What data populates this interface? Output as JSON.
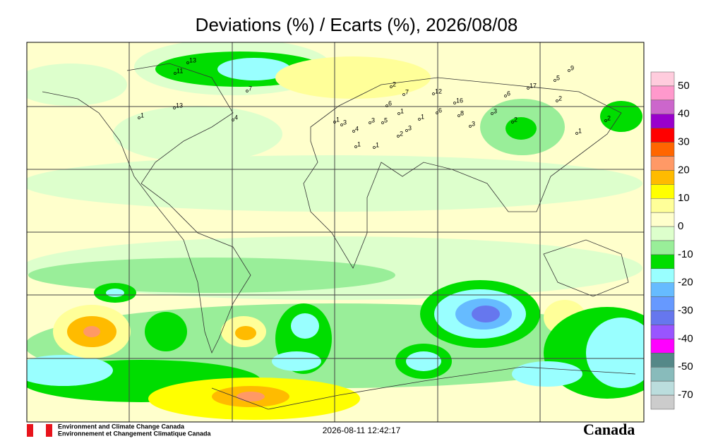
{
  "title": "Deviations (%) / Ecarts (%), 2026/08/08",
  "colorbar": {
    "colors": [
      "#ffccdd",
      "#ff99cc",
      "#cc66cc",
      "#9900cc",
      "#ff0000",
      "#ff6600",
      "#ff9966",
      "#ffbb00",
      "#ffff00",
      "#ffff99",
      "#ffffcc",
      "#ddffcc",
      "#99ee99",
      "#00dd00",
      "#99ffff",
      "#66bbff",
      "#6699ff",
      "#6677ee",
      "#9955ff",
      "#ff00ff",
      "#558888",
      "#88bbbb",
      "#bbdddd",
      "#cccccc"
    ],
    "labels": [
      "50",
      "40",
      "30",
      "20",
      "10",
      "0",
      "-10",
      "-20",
      "-30",
      "-40",
      "-50",
      "-70"
    ]
  },
  "stations": [
    "13",
    "11",
    "7",
    "13",
    "4",
    "1",
    "2",
    "7",
    "12",
    "17",
    "5",
    "9",
    "2",
    "16",
    "6",
    "1",
    "1",
    "6",
    "3",
    "8",
    "3",
    "2",
    "1",
    "2",
    "5",
    "3",
    "6",
    "3",
    "2",
    "1",
    "1",
    "4",
    "3",
    "1"
  ],
  "footer": {
    "agency_en": "Environment and Climate Change Canada",
    "agency_fr": "Environnement et Changement Climatique Canada",
    "timestamp": "2026-08-11 12:42:17",
    "wordmark": "Canada"
  }
}
